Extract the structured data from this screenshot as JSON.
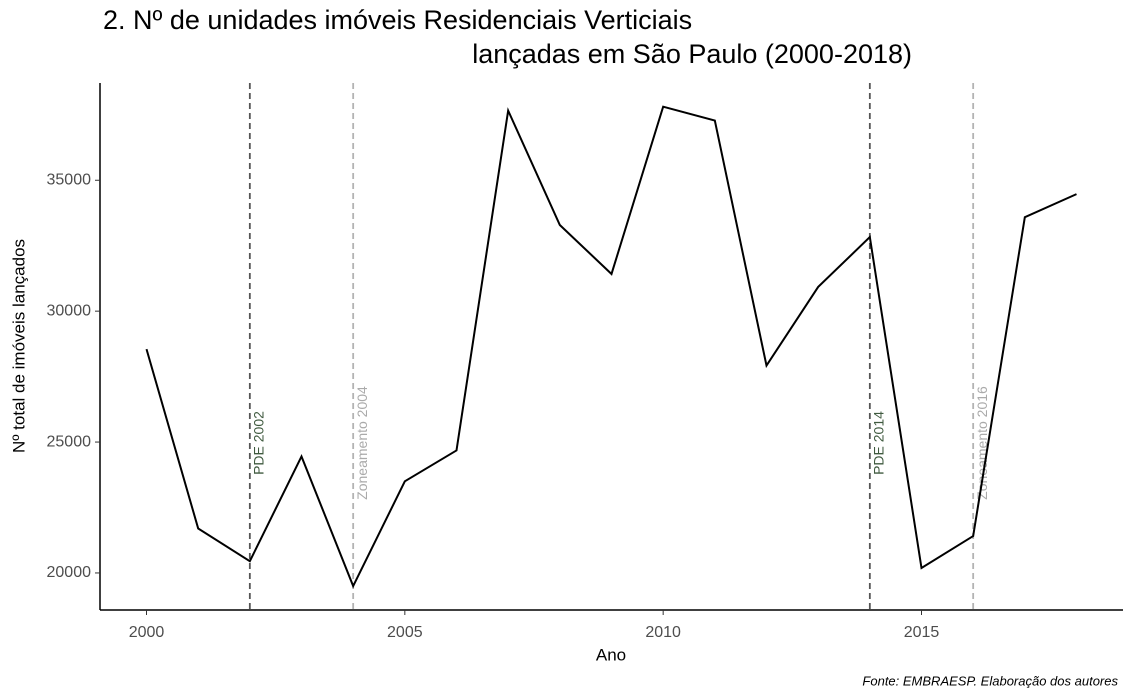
{
  "chart_data": {
    "type": "line",
    "title": [
      "2. Nº de unidades imóveis Residenciais Verticiais",
      "lançadas em São Paulo (2000-2018)"
    ],
    "x_label": "Ano",
    "y_label": "Nº total de imóveis lançados",
    "caption": "Fonte: EMBRAESP. Elaboração dos autores",
    "x": [
      2000,
      2001,
      2002,
      2003,
      2004,
      2005,
      2006,
      2007,
      2008,
      2009,
      2010,
      2011,
      2012,
      2013,
      2014,
      2015,
      2016,
      2017,
      2018
    ],
    "values": [
      28550,
      21700,
      20450,
      24450,
      19500,
      23500,
      24680,
      37660,
      33290,
      31420,
      37810,
      37280,
      27920,
      30925,
      32830,
      20190,
      21410,
      33590,
      34470
    ],
    "color": "#000000",
    "xlim": [
      1999.1,
      2018.9
    ],
    "xticks": [
      2000,
      2005,
      2010,
      2015
    ],
    "ylim": [
      18585,
      38715
    ],
    "yticks": [
      20000,
      25000,
      30000,
      35000
    ],
    "annotations": [
      {
        "x": 2002,
        "label": "PDE 2002",
        "color": "#555555",
        "text_color": "#3f5a3f"
      },
      {
        "x": 2004,
        "label": "Zoneamento 2004",
        "color": "#b3b3b3",
        "text_color": "#aaaaaa"
      },
      {
        "x": 2014,
        "label": "PDE 2014",
        "color": "#555555",
        "text_color": "#3f5a3f"
      },
      {
        "x": 2016,
        "label": "Zoneamento 2016",
        "color": "#b3b3b3",
        "text_color": "#aaaaaa"
      }
    ]
  }
}
